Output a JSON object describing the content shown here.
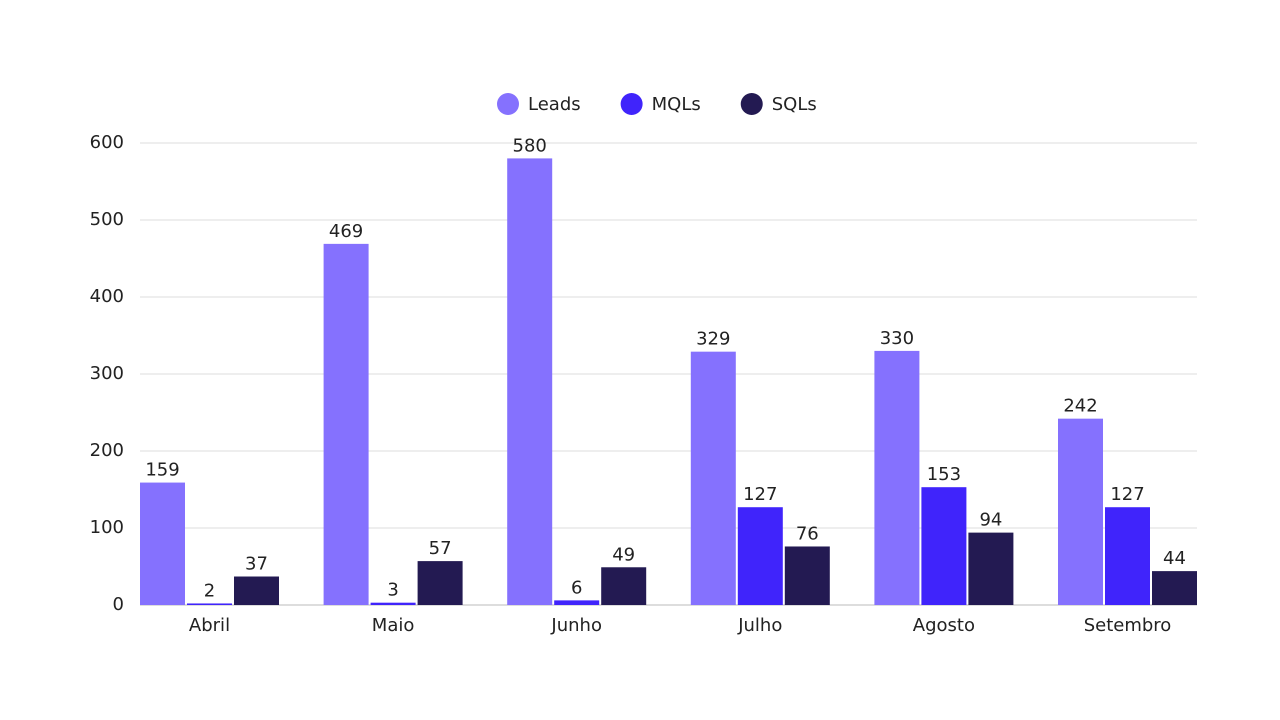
{
  "chart_data": {
    "type": "bar",
    "categories": [
      "Abril",
      "Maio",
      "Junho",
      "Julho",
      "Agosto",
      "Setembro"
    ],
    "series": [
      {
        "name": "Leads",
        "color": "#8571fe",
        "values": [
          159,
          469,
          580,
          329,
          330,
          242
        ]
      },
      {
        "name": "MQLs",
        "color": "#4024fb",
        "values": [
          2,
          3,
          6,
          127,
          153,
          127
        ]
      },
      {
        "name": "SQLs",
        "color": "#231a52",
        "values": [
          37,
          57,
          49,
          76,
          94,
          44
        ]
      }
    ],
    "ylim": [
      0,
      600
    ],
    "yticks": [
      0,
      100,
      200,
      300,
      400,
      500,
      600
    ],
    "grid": true,
    "legend": "top"
  }
}
